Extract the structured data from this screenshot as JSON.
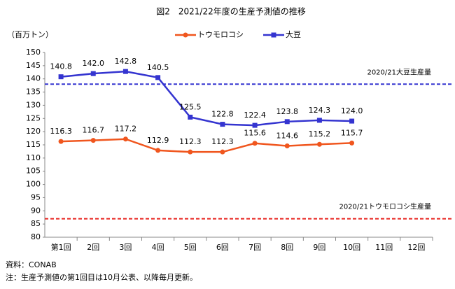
{
  "chart_data": {
    "type": "line",
    "title": "図2　2021/22年度の生産予測値の推移",
    "y_label": "（百万トン）",
    "categories": [
      "第1回",
      "2回",
      "3回",
      "4回",
      "5回",
      "6回",
      "7回",
      "8回",
      "9回",
      "10回",
      "11回",
      "12回"
    ],
    "series": [
      {
        "name": "トウモロコシ",
        "color": "#f0561e",
        "marker": "circle",
        "values": [
          116.3,
          116.7,
          117.2,
          112.9,
          112.3,
          112.3,
          115.6,
          114.6,
          115.2,
          115.7,
          null,
          null
        ],
        "value_labels": [
          "116.3",
          "116.7",
          "117.2",
          "112.9",
          "112.3",
          "112.3",
          "115.6",
          "114.6",
          "115.2",
          "115.7",
          null,
          null
        ]
      },
      {
        "name": "大豆",
        "color": "#3434d0",
        "marker": "square",
        "values": [
          140.8,
          142.0,
          142.8,
          140.5,
          125.5,
          122.8,
          122.4,
          123.8,
          124.3,
          124.0,
          null,
          null
        ],
        "value_labels": [
          "140.8",
          "142.0",
          "142.8",
          "140.5",
          "125.5",
          "122.8",
          "122.4",
          "123.8",
          "124.3",
          "124.0",
          null,
          null
        ]
      }
    ],
    "reference_lines": [
      {
        "label": "2020/21大豆生産量",
        "value": 138,
        "color": "#3434d0"
      },
      {
        "label": "2020/21トウモロコシ生産量",
        "value": 87,
        "color": "#e8231e"
      }
    ],
    "ylim": [
      80,
      150
    ],
    "yticks": [
      80,
      85,
      90,
      95,
      100,
      105,
      110,
      115,
      120,
      125,
      130,
      135,
      140,
      145,
      150
    ],
    "grid": false,
    "notes": [
      "資料：CONAB",
      "注：生産予測値の第1回目は10月公表、以降毎月更新。"
    ]
  }
}
